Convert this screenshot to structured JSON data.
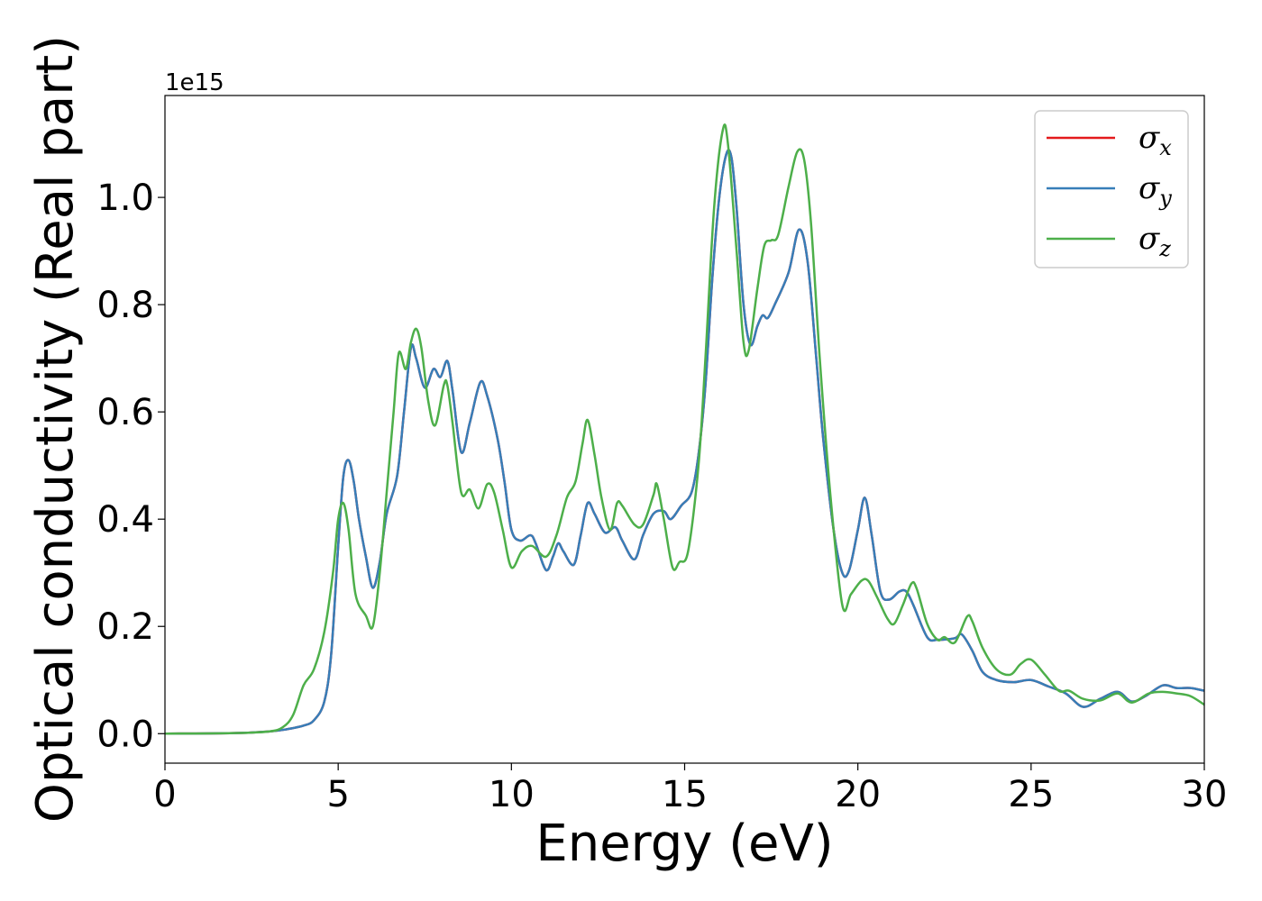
{
  "chart_data": {
    "type": "line",
    "xlabel": "Energy (eV)",
    "ylabel": "Optical conductivity (Real part)",
    "y_offset_text": "1e15",
    "xlim": [
      0,
      30
    ],
    "ylim": [
      -0.055,
      1.19
    ],
    "x_ticks": [
      0,
      5,
      10,
      15,
      20,
      25,
      30
    ],
    "x_tick_labels": [
      "0",
      "5",
      "10",
      "15",
      "20",
      "25",
      "30"
    ],
    "y_ticks": [
      0.0,
      0.2,
      0.4,
      0.6,
      0.8,
      1.0
    ],
    "y_tick_labels": [
      "0.0",
      "0.2",
      "0.4",
      "0.6",
      "0.8",
      "1.0"
    ],
    "grid": false,
    "legend_position": "top-right",
    "series": [
      {
        "name": "σx",
        "symbol": "σ",
        "subscript": "x",
        "color": "#e41a1c",
        "points": [
          [
            0,
            0
          ],
          [
            2,
            0.001
          ],
          [
            3,
            0.004
          ],
          [
            3.5,
            0.008
          ],
          [
            4,
            0.015
          ],
          [
            4.3,
            0.025
          ],
          [
            4.6,
            0.06
          ],
          [
            4.8,
            0.15
          ],
          [
            5,
            0.35
          ],
          [
            5.15,
            0.48
          ],
          [
            5.3,
            0.51
          ],
          [
            5.45,
            0.47
          ],
          [
            5.6,
            0.4
          ],
          [
            5.8,
            0.33
          ],
          [
            6,
            0.272
          ],
          [
            6.2,
            0.32
          ],
          [
            6.4,
            0.41
          ],
          [
            6.7,
            0.48
          ],
          [
            6.9,
            0.6
          ],
          [
            7.1,
            0.72
          ],
          [
            7.25,
            0.7
          ],
          [
            7.5,
            0.645
          ],
          [
            7.75,
            0.68
          ],
          [
            7.95,
            0.665
          ],
          [
            8.15,
            0.695
          ],
          [
            8.3,
            0.64
          ],
          [
            8.55,
            0.525
          ],
          [
            8.8,
            0.58
          ],
          [
            9.1,
            0.655
          ],
          [
            9.3,
            0.63
          ],
          [
            9.6,
            0.55
          ],
          [
            9.8,
            0.47
          ],
          [
            10,
            0.38
          ],
          [
            10.25,
            0.36
          ],
          [
            10.55,
            0.37
          ],
          [
            10.7,
            0.355
          ],
          [
            11,
            0.305
          ],
          [
            11.2,
            0.33
          ],
          [
            11.35,
            0.355
          ],
          [
            11.5,
            0.34
          ],
          [
            11.8,
            0.315
          ],
          [
            12,
            0.37
          ],
          [
            12.2,
            0.43
          ],
          [
            12.4,
            0.41
          ],
          [
            12.7,
            0.375
          ],
          [
            13,
            0.385
          ],
          [
            13.2,
            0.36
          ],
          [
            13.55,
            0.325
          ],
          [
            13.8,
            0.37
          ],
          [
            14.1,
            0.41
          ],
          [
            14.4,
            0.415
          ],
          [
            14.6,
            0.4
          ],
          [
            14.9,
            0.425
          ],
          [
            15.2,
            0.45
          ],
          [
            15.4,
            0.52
          ],
          [
            15.6,
            0.65
          ],
          [
            15.8,
            0.85
          ],
          [
            16,
            1.0
          ],
          [
            16.2,
            1.08
          ],
          [
            16.35,
            1.075
          ],
          [
            16.5,
            0.98
          ],
          [
            16.7,
            0.8
          ],
          [
            16.9,
            0.725
          ],
          [
            17.1,
            0.76
          ],
          [
            17.25,
            0.78
          ],
          [
            17.4,
            0.775
          ],
          [
            17.6,
            0.8
          ],
          [
            18,
            0.86
          ],
          [
            18.3,
            0.94
          ],
          [
            18.55,
            0.88
          ],
          [
            18.8,
            0.7
          ],
          [
            19,
            0.55
          ],
          [
            19.3,
            0.38
          ],
          [
            19.55,
            0.3
          ],
          [
            19.75,
            0.305
          ],
          [
            20,
            0.38
          ],
          [
            20.2,
            0.44
          ],
          [
            20.4,
            0.37
          ],
          [
            20.65,
            0.265
          ],
          [
            20.9,
            0.25
          ],
          [
            21.2,
            0.265
          ],
          [
            21.4,
            0.265
          ],
          [
            21.6,
            0.24
          ],
          [
            22,
            0.18
          ],
          [
            22.3,
            0.175
          ],
          [
            22.8,
            0.178
          ],
          [
            23,
            0.185
          ],
          [
            23.3,
            0.155
          ],
          [
            23.6,
            0.115
          ],
          [
            24,
            0.1
          ],
          [
            24.5,
            0.096
          ],
          [
            25,
            0.1
          ],
          [
            25.5,
            0.088
          ],
          [
            26,
            0.075
          ],
          [
            26.5,
            0.05
          ],
          [
            27,
            0.065
          ],
          [
            27.5,
            0.078
          ],
          [
            27.9,
            0.06
          ],
          [
            28.3,
            0.07
          ],
          [
            28.8,
            0.09
          ],
          [
            29.2,
            0.085
          ],
          [
            29.6,
            0.085
          ],
          [
            30,
            0.08
          ]
        ]
      },
      {
        "name": "σy",
        "symbol": "σ",
        "subscript": "y",
        "color": "#377eb8",
        "points": [
          [
            0,
            0
          ],
          [
            2,
            0.001
          ],
          [
            3,
            0.004
          ],
          [
            3.5,
            0.008
          ],
          [
            4,
            0.015
          ],
          [
            4.3,
            0.025
          ],
          [
            4.6,
            0.06
          ],
          [
            4.8,
            0.15
          ],
          [
            5,
            0.35
          ],
          [
            5.15,
            0.48
          ],
          [
            5.3,
            0.51
          ],
          [
            5.45,
            0.47
          ],
          [
            5.6,
            0.4
          ],
          [
            5.8,
            0.33
          ],
          [
            6,
            0.272
          ],
          [
            6.2,
            0.32
          ],
          [
            6.4,
            0.41
          ],
          [
            6.7,
            0.48
          ],
          [
            6.9,
            0.6
          ],
          [
            7.1,
            0.72
          ],
          [
            7.25,
            0.7
          ],
          [
            7.5,
            0.645
          ],
          [
            7.75,
            0.68
          ],
          [
            7.95,
            0.665
          ],
          [
            8.15,
            0.695
          ],
          [
            8.3,
            0.64
          ],
          [
            8.55,
            0.525
          ],
          [
            8.8,
            0.58
          ],
          [
            9.1,
            0.655
          ],
          [
            9.3,
            0.63
          ],
          [
            9.6,
            0.55
          ],
          [
            9.8,
            0.47
          ],
          [
            10,
            0.38
          ],
          [
            10.25,
            0.36
          ],
          [
            10.55,
            0.37
          ],
          [
            10.7,
            0.355
          ],
          [
            11,
            0.305
          ],
          [
            11.2,
            0.33
          ],
          [
            11.35,
            0.355
          ],
          [
            11.5,
            0.34
          ],
          [
            11.8,
            0.315
          ],
          [
            12,
            0.37
          ],
          [
            12.2,
            0.43
          ],
          [
            12.4,
            0.41
          ],
          [
            12.7,
            0.375
          ],
          [
            13,
            0.385
          ],
          [
            13.2,
            0.36
          ],
          [
            13.55,
            0.325
          ],
          [
            13.8,
            0.37
          ],
          [
            14.1,
            0.41
          ],
          [
            14.4,
            0.415
          ],
          [
            14.6,
            0.4
          ],
          [
            14.9,
            0.425
          ],
          [
            15.2,
            0.45
          ],
          [
            15.4,
            0.52
          ],
          [
            15.6,
            0.65
          ],
          [
            15.8,
            0.85
          ],
          [
            16,
            1.0
          ],
          [
            16.2,
            1.08
          ],
          [
            16.35,
            1.075
          ],
          [
            16.5,
            0.98
          ],
          [
            16.7,
            0.8
          ],
          [
            16.9,
            0.725
          ],
          [
            17.1,
            0.76
          ],
          [
            17.25,
            0.78
          ],
          [
            17.4,
            0.775
          ],
          [
            17.6,
            0.8
          ],
          [
            18,
            0.86
          ],
          [
            18.3,
            0.94
          ],
          [
            18.55,
            0.88
          ],
          [
            18.8,
            0.7
          ],
          [
            19,
            0.55
          ],
          [
            19.3,
            0.38
          ],
          [
            19.55,
            0.3
          ],
          [
            19.75,
            0.305
          ],
          [
            20,
            0.38
          ],
          [
            20.2,
            0.44
          ],
          [
            20.4,
            0.37
          ],
          [
            20.65,
            0.265
          ],
          [
            20.9,
            0.25
          ],
          [
            21.2,
            0.265
          ],
          [
            21.4,
            0.265
          ],
          [
            21.6,
            0.24
          ],
          [
            22,
            0.18
          ],
          [
            22.3,
            0.175
          ],
          [
            22.8,
            0.178
          ],
          [
            23,
            0.185
          ],
          [
            23.3,
            0.155
          ],
          [
            23.6,
            0.115
          ],
          [
            24,
            0.1
          ],
          [
            24.5,
            0.096
          ],
          [
            25,
            0.1
          ],
          [
            25.5,
            0.088
          ],
          [
            26,
            0.075
          ],
          [
            26.5,
            0.05
          ],
          [
            27,
            0.065
          ],
          [
            27.5,
            0.078
          ],
          [
            27.9,
            0.06
          ],
          [
            28.3,
            0.07
          ],
          [
            28.8,
            0.09
          ],
          [
            29.2,
            0.085
          ],
          [
            29.6,
            0.085
          ],
          [
            30,
            0.08
          ]
        ]
      },
      {
        "name": "σz",
        "symbol": "σ",
        "subscript": "z",
        "color": "#4daf4a",
        "points": [
          [
            0,
            0
          ],
          [
            2,
            0.001
          ],
          [
            3,
            0.004
          ],
          [
            3.4,
            0.012
          ],
          [
            3.7,
            0.035
          ],
          [
            4,
            0.09
          ],
          [
            4.3,
            0.12
          ],
          [
            4.6,
            0.19
          ],
          [
            4.85,
            0.3
          ],
          [
            5,
            0.4
          ],
          [
            5.15,
            0.43
          ],
          [
            5.3,
            0.38
          ],
          [
            5.5,
            0.26
          ],
          [
            5.8,
            0.22
          ],
          [
            6,
            0.2
          ],
          [
            6.2,
            0.3
          ],
          [
            6.4,
            0.45
          ],
          [
            6.6,
            0.6
          ],
          [
            6.75,
            0.71
          ],
          [
            6.95,
            0.68
          ],
          [
            7.1,
            0.73
          ],
          [
            7.25,
            0.755
          ],
          [
            7.4,
            0.72
          ],
          [
            7.6,
            0.62
          ],
          [
            7.8,
            0.575
          ],
          [
            8.05,
            0.65
          ],
          [
            8.15,
            0.65
          ],
          [
            8.3,
            0.58
          ],
          [
            8.55,
            0.45
          ],
          [
            8.8,
            0.455
          ],
          [
            9.05,
            0.42
          ],
          [
            9.3,
            0.465
          ],
          [
            9.5,
            0.45
          ],
          [
            9.75,
            0.38
          ],
          [
            10,
            0.31
          ],
          [
            10.3,
            0.34
          ],
          [
            10.6,
            0.35
          ],
          [
            11,
            0.33
          ],
          [
            11.3,
            0.37
          ],
          [
            11.6,
            0.44
          ],
          [
            11.85,
            0.47
          ],
          [
            12.05,
            0.54
          ],
          [
            12.2,
            0.585
          ],
          [
            12.4,
            0.52
          ],
          [
            12.6,
            0.44
          ],
          [
            12.85,
            0.38
          ],
          [
            13.05,
            0.43
          ],
          [
            13.2,
            0.425
          ],
          [
            13.55,
            0.39
          ],
          [
            13.8,
            0.39
          ],
          [
            14.1,
            0.445
          ],
          [
            14.2,
            0.465
          ],
          [
            14.4,
            0.4
          ],
          [
            14.65,
            0.31
          ],
          [
            14.85,
            0.32
          ],
          [
            15.1,
            0.34
          ],
          [
            15.4,
            0.5
          ],
          [
            15.6,
            0.7
          ],
          [
            15.85,
            0.98
          ],
          [
            16.1,
            1.125
          ],
          [
            16.25,
            1.1
          ],
          [
            16.5,
            0.9
          ],
          [
            16.7,
            0.73
          ],
          [
            16.85,
            0.715
          ],
          [
            17.1,
            0.83
          ],
          [
            17.3,
            0.91
          ],
          [
            17.5,
            0.92
          ],
          [
            17.7,
            0.93
          ],
          [
            18,
            1.02
          ],
          [
            18.25,
            1.085
          ],
          [
            18.45,
            1.07
          ],
          [
            18.65,
            0.95
          ],
          [
            18.9,
            0.7
          ],
          [
            19.2,
            0.45
          ],
          [
            19.55,
            0.24
          ],
          [
            19.8,
            0.26
          ],
          [
            20.1,
            0.285
          ],
          [
            20.3,
            0.285
          ],
          [
            20.55,
            0.255
          ],
          [
            20.85,
            0.215
          ],
          [
            21.05,
            0.205
          ],
          [
            21.3,
            0.24
          ],
          [
            21.55,
            0.28
          ],
          [
            21.7,
            0.27
          ],
          [
            22,
            0.205
          ],
          [
            22.3,
            0.175
          ],
          [
            22.5,
            0.18
          ],
          [
            22.8,
            0.17
          ],
          [
            23.15,
            0.218
          ],
          [
            23.3,
            0.21
          ],
          [
            23.6,
            0.16
          ],
          [
            24,
            0.12
          ],
          [
            24.4,
            0.11
          ],
          [
            24.7,
            0.13
          ],
          [
            25,
            0.138
          ],
          [
            25.4,
            0.11
          ],
          [
            25.8,
            0.08
          ],
          [
            26.1,
            0.08
          ],
          [
            26.5,
            0.065
          ],
          [
            27,
            0.062
          ],
          [
            27.5,
            0.075
          ],
          [
            27.9,
            0.058
          ],
          [
            28.4,
            0.075
          ],
          [
            28.8,
            0.078
          ],
          [
            29.2,
            0.075
          ],
          [
            29.6,
            0.07
          ],
          [
            30,
            0.054
          ]
        ]
      }
    ]
  }
}
